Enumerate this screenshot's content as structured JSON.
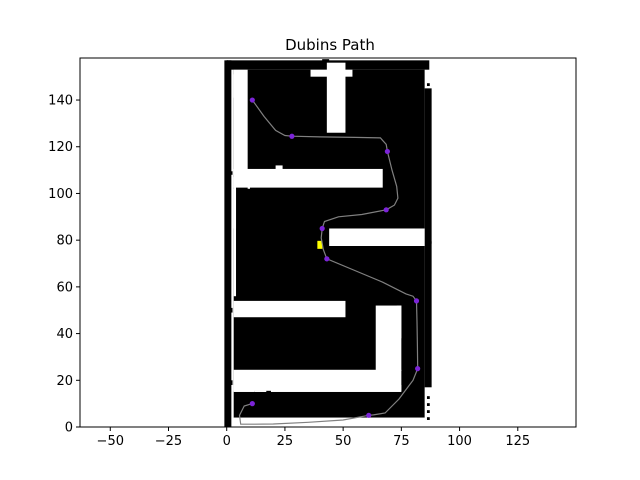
{
  "chart_data": {
    "type": "scatter",
    "title": "Dubins Path",
    "xlabel": "",
    "ylabel": "",
    "xlim": [
      -63,
      150
    ],
    "ylim": [
      0,
      158
    ],
    "xticks": [
      -50,
      -25,
      0,
      25,
      50,
      75,
      100,
      125
    ],
    "yticks": [
      0,
      20,
      40,
      60,
      80,
      100,
      120,
      140
    ],
    "map_bounds": {
      "x": [
        0,
        87
      ],
      "y": [
        0,
        157
      ]
    },
    "obstacles": [
      {
        "x": 3,
        "y": 4,
        "w": 82,
        "h": 149
      },
      {
        "x": -1,
        "y": 0,
        "w": 1.5,
        "h": 157
      },
      {
        "x": 0,
        "y": 153,
        "w": 87,
        "h": 4
      },
      {
        "x": 0,
        "y": 0,
        "w": 2,
        "h": 157
      },
      {
        "x": 85,
        "y": 17,
        "w": 3,
        "h": 128
      },
      {
        "x": 86,
        "y": 3,
        "w": 1.2,
        "h": 1.2
      },
      {
        "x": 86,
        "y": 6,
        "w": 1.2,
        "h": 1.2
      },
      {
        "x": 86,
        "y": 9,
        "w": 1.2,
        "h": 1.2
      },
      {
        "x": 86,
        "y": 12,
        "w": 1.2,
        "h": 1.2
      },
      {
        "x": 86,
        "y": 146,
        "w": 1.2,
        "h": 1.2
      },
      {
        "x": 86,
        "y": 78.5,
        "w": 2,
        "h": 1
      },
      {
        "x": 1,
        "y": 18,
        "w": 1.5,
        "h": 2
      },
      {
        "x": 1,
        "y": 49,
        "w": 1.5,
        "h": 2
      },
      {
        "x": 1,
        "y": 108,
        "w": 1.5,
        "h": 1.5
      },
      {
        "x": 41,
        "y": 156,
        "w": 3,
        "h": 1.5
      }
    ],
    "free_space": [
      {
        "x": 3,
        "y": 102.5,
        "w": 64,
        "h": 8
      },
      {
        "x": 3,
        "y": 108,
        "w": 6,
        "h": 45
      },
      {
        "x": 43,
        "y": 126,
        "w": 8,
        "h": 30
      },
      {
        "x": 44,
        "y": 77.5,
        "w": 41,
        "h": 7.5
      },
      {
        "x": 3,
        "y": 47,
        "w": 48,
        "h": 7
      },
      {
        "x": 3,
        "y": 15.5,
        "w": 72,
        "h": 9
      },
      {
        "x": 64,
        "y": 24,
        "w": 11,
        "h": 28
      },
      {
        "x": 73,
        "y": 38,
        "w": 2,
        "h": 14
      },
      {
        "x": 3,
        "y": 15,
        "w": 9,
        "h": 3
      },
      {
        "x": 12,
        "y": 15,
        "w": 5,
        "h": 0.6
      },
      {
        "x": 19,
        "y": 15,
        "w": 56,
        "h": 3
      },
      {
        "x": 3,
        "y": 1,
        "w": 82,
        "h": 3
      },
      {
        "x": 3,
        "y": 85,
        "w": 1,
        "h": 22
      },
      {
        "x": 3,
        "y": 56,
        "w": 1,
        "h": 46
      },
      {
        "x": 3,
        "y": 141,
        "w": 3,
        "h": 10
      },
      {
        "x": 36,
        "y": 150,
        "w": 18,
        "h": 3
      },
      {
        "x": 9,
        "y": 102,
        "w": 1,
        "h": 5
      },
      {
        "x": 21,
        "y": 104,
        "w": 3,
        "h": 8
      }
    ],
    "goal_marker": {
      "x": 40,
      "y": 78,
      "color": "#ffff00"
    },
    "waypoints": [
      {
        "x": 11,
        "y": 140
      },
      {
        "x": 28,
        "y": 124.5
      },
      {
        "x": 69,
        "y": 118
      },
      {
        "x": 68.5,
        "y": 93
      },
      {
        "x": 41,
        "y": 85
      },
      {
        "x": 43,
        "y": 72
      },
      {
        "x": 81.5,
        "y": 54
      },
      {
        "x": 82,
        "y": 25
      },
      {
        "x": 61,
        "y": 5
      },
      {
        "x": 11,
        "y": 10
      }
    ],
    "path": [
      [
        11,
        140
      ],
      [
        16,
        133
      ],
      [
        21,
        127
      ],
      [
        25,
        124.8
      ],
      [
        28,
        124.5
      ],
      [
        40,
        124.2
      ],
      [
        55,
        124
      ],
      [
        66,
        123.8
      ],
      [
        68.5,
        121
      ],
      [
        69,
        118
      ],
      [
        71,
        110
      ],
      [
        73,
        103
      ],
      [
        73.5,
        98
      ],
      [
        72,
        95
      ],
      [
        68.5,
        93
      ],
      [
        58,
        91
      ],
      [
        48,
        90
      ],
      [
        42,
        88
      ],
      [
        41,
        85
      ],
      [
        40.6,
        81
      ],
      [
        41.5,
        76
      ],
      [
        43,
        72
      ],
      [
        55,
        67
      ],
      [
        67,
        62
      ],
      [
        77,
        57
      ],
      [
        80,
        56
      ],
      [
        81.5,
        54
      ],
      [
        81.7,
        45
      ],
      [
        81.9,
        35
      ],
      [
        82,
        25
      ],
      [
        80,
        20
      ],
      [
        74,
        12
      ],
      [
        68,
        6
      ],
      [
        63,
        5.2
      ],
      [
        61,
        5
      ],
      [
        50,
        3
      ],
      [
        35,
        2
      ],
      [
        20,
        1.3
      ],
      [
        12,
        1.2
      ],
      [
        6,
        1.2
      ],
      [
        5.5,
        5
      ],
      [
        7.5,
        9
      ],
      [
        11,
        10
      ]
    ],
    "colors": {
      "path": "#808080",
      "marker": "#7c24d8",
      "obstacle": "#000000",
      "free": "#ffffff"
    }
  }
}
